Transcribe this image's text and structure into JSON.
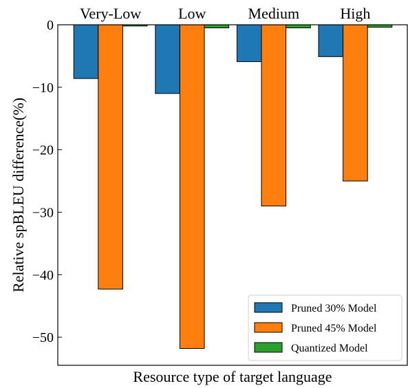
{
  "chart_data": {
    "type": "bar",
    "title": "",
    "xlabel": "Resource type of target language",
    "ylabel": "Relative spBLEU difference(%)",
    "categories": [
      "Very-Low",
      "Low",
      "Medium",
      "High"
    ],
    "ylim": [
      -54.5,
      0
    ],
    "yticks": [
      0,
      -10,
      -20,
      -30,
      -40,
      -50
    ],
    "ytick_labels": [
      "0",
      "−10",
      "−20",
      "−30",
      "−40",
      "−50"
    ],
    "grid": false,
    "legend_position": "bottom-right",
    "series": [
      {
        "name": "Pruned 30% Model",
        "color": "#1f77b4",
        "values": [
          -8.6,
          -11.0,
          -5.9,
          -5.1
        ]
      },
      {
        "name": "Pruned 45% Model",
        "color": "#ff7f0e",
        "values": [
          -42.3,
          -51.8,
          -29.0,
          -25.0
        ]
      },
      {
        "name": "Quantized Model",
        "color": "#2ca02c",
        "values": [
          -0.2,
          -0.5,
          -0.5,
          -0.4
        ]
      }
    ]
  }
}
